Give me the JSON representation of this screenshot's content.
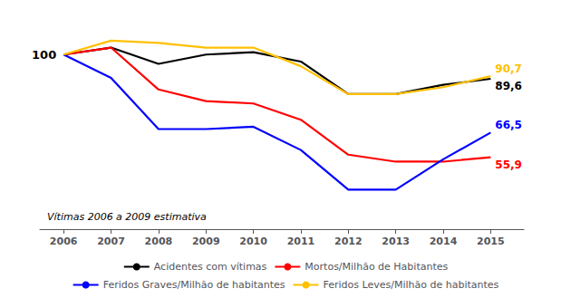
{
  "chart_data": {
    "type": "line",
    "x": [
      2006,
      2007,
      2008,
      2009,
      2010,
      2011,
      2012,
      2013,
      2014,
      2015
    ],
    "series": [
      {
        "name": "Acidentes com vítimas",
        "color": "#000000",
        "values": [
          100,
          103,
          96,
          100,
          101,
          97,
          83,
          83,
          87,
          89.6
        ],
        "value_labels": [
          null,
          null,
          null,
          null,
          null,
          null,
          null,
          null,
          null,
          "89,6"
        ]
      },
      {
        "name": "Mortos/Milhão de Habitantes",
        "color": "#ff0000",
        "values": [
          100,
          103,
          85,
          80,
          79,
          72,
          57,
          54,
          54,
          55.9
        ],
        "value_labels": [
          null,
          null,
          null,
          null,
          null,
          null,
          null,
          null,
          null,
          "55,9"
        ]
      },
      {
        "name": "Feridos Graves/Milhão de habitantes",
        "color": "#0000ff",
        "values": [
          100,
          90,
          68,
          68,
          69,
          59,
          42,
          42,
          55,
          66.5
        ],
        "value_labels": [
          null,
          null,
          null,
          null,
          null,
          null,
          null,
          null,
          null,
          "66,5"
        ]
      },
      {
        "name": "Feridos Leves/Milhão de habitantes",
        "color": "#ffc000",
        "values": [
          100,
          106,
          105,
          103,
          103,
          95,
          83,
          83,
          86,
          90.7
        ],
        "value_labels": [
          null,
          null,
          null,
          null,
          null,
          null,
          null,
          null,
          null,
          "90,7"
        ]
      }
    ],
    "xlim": [
      2005.5,
      2015.7
    ],
    "xticks": [
      2006,
      2007,
      2008,
      2009,
      2010,
      2011,
      2012,
      2013,
      2014,
      2015
    ],
    "ylim": [
      25,
      118
    ],
    "tick_labels": "x",
    "grid": false,
    "legend": "bottom",
    "annotations": [
      "100",
      "Vítimas 2006 a 2009 estimativa"
    ]
  }
}
